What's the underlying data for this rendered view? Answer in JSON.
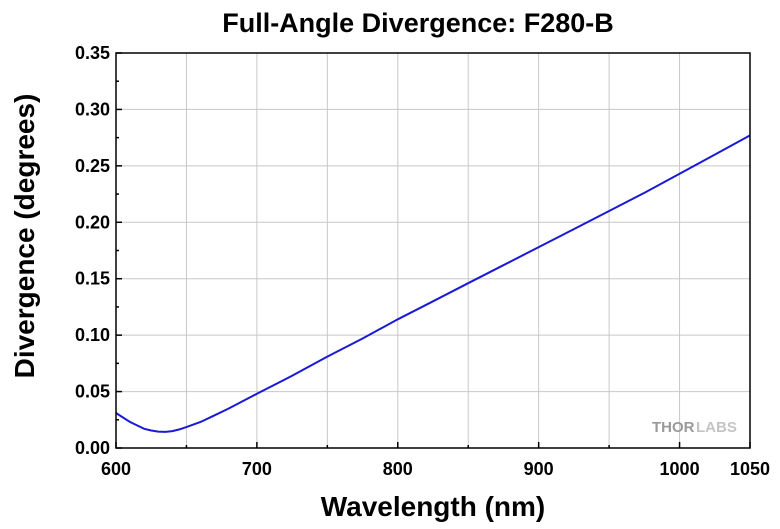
{
  "chart_data": {
    "type": "line",
    "title": "Full-Angle Divergence: F280-B",
    "xlabel": "Wavelength (nm)",
    "ylabel": "Divergence (degrees)",
    "xlim": [
      600,
      1050
    ],
    "ylim": [
      0,
      0.35
    ],
    "x_ticks": [
      600,
      700,
      800,
      900,
      1000,
      1050
    ],
    "x_tick_labels": [
      "600",
      "700",
      "800",
      "900",
      "1000",
      "1050"
    ],
    "y_ticks": [
      0,
      0.05,
      0.1,
      0.15,
      0.2,
      0.25,
      0.3,
      0.35
    ],
    "y_tick_labels": [
      "0.00",
      "0.05",
      "0.10",
      "0.15",
      "0.20",
      "0.25",
      "0.30",
      "0.35"
    ],
    "grid": true,
    "series": [
      {
        "color": "#1a1ad6",
        "x": [
          600,
          605,
          610,
          615,
          620,
          625,
          630,
          635,
          640,
          645,
          650,
          660,
          670,
          680,
          700,
          725,
          750,
          775,
          800,
          825,
          850,
          875,
          900,
          925,
          950,
          975,
          1000,
          1025,
          1050
        ],
        "y": [
          0.031,
          0.027,
          0.023,
          0.02,
          0.017,
          0.0155,
          0.0145,
          0.0143,
          0.015,
          0.0165,
          0.0185,
          0.023,
          0.029,
          0.035,
          0.048,
          0.064,
          0.081,
          0.097,
          0.114,
          0.13,
          0.146,
          0.162,
          0.178,
          0.194,
          0.21,
          0.226,
          0.243,
          0.26,
          0.277
        ]
      }
    ],
    "logo": {
      "part1": "THOR",
      "part2": "LABS"
    }
  }
}
